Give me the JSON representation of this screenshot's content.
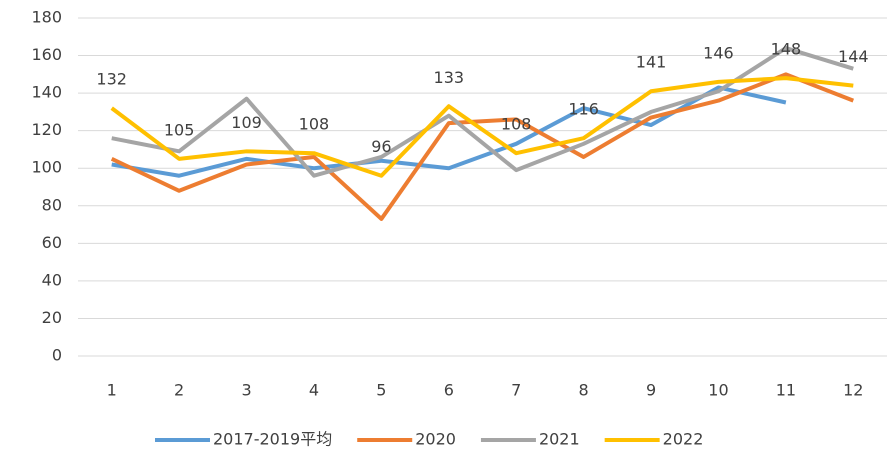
{
  "chart_data": {
    "type": "line",
    "categories": [
      "1",
      "2",
      "3",
      "4",
      "5",
      "6",
      "7",
      "8",
      "9",
      "10",
      "11",
      "12"
    ],
    "series": [
      {
        "name": "2017-2019平均",
        "color": "#5b9bd5",
        "values": [
          102,
          96,
          105,
          100,
          104,
          100,
          113,
          132,
          123,
          143,
          135,
          null
        ]
      },
      {
        "name": "2020",
        "color": "#ed7d31",
        "values": [
          105,
          88,
          102,
          106,
          73,
          124,
          126,
          106,
          127,
          136,
          150,
          136
        ]
      },
      {
        "name": "2021",
        "color": "#a5a5a5",
        "values": [
          116,
          109,
          137,
          96,
          106,
          128,
          99,
          113,
          130,
          141,
          164,
          153
        ]
      },
      {
        "name": "2022",
        "color": "#ffc000",
        "values": [
          132,
          105,
          109,
          108,
          96,
          133,
          108,
          116,
          141,
          146,
          148,
          144
        ]
      }
    ],
    "ylim": [
      0,
      180
    ],
    "yticks": [
      0,
      20,
      40,
      60,
      80,
      100,
      120,
      140,
      160,
      180
    ],
    "grid": true,
    "legend": "bottom",
    "labeled_series": 3
  }
}
